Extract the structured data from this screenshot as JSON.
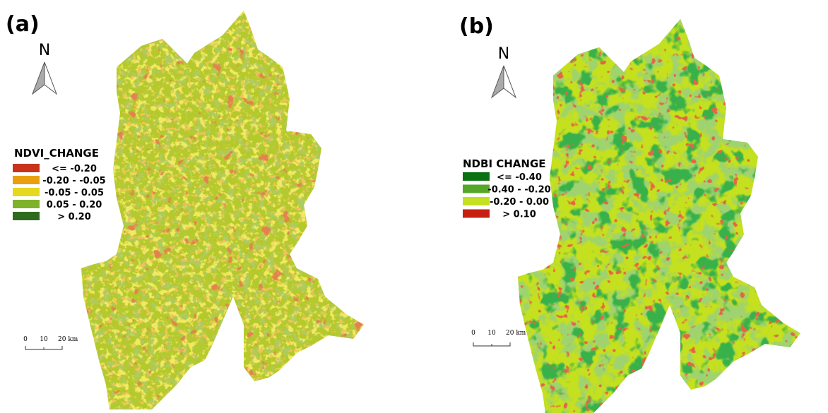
{
  "panels": [
    {
      "label": "(a)",
      "north": "N",
      "legend": {
        "title": "NDVI_CHANGE",
        "items": [
          {
            "label": "<= -0.20",
            "color": "#c8331a"
          },
          {
            "label": "-0.20 - -0.05",
            "color": "#e8a010"
          },
          {
            "label": "-0.05 - 0.05",
            "color": "#e6d81e"
          },
          {
            "label": "0.05 - 0.20",
            "color": "#7fb22a"
          },
          {
            "label": "> 0.20",
            "color": "#2f6b1e"
          }
        ]
      },
      "scale": [
        "0",
        "10",
        "20 km"
      ]
    },
    {
      "label": "(b)",
      "north": "N",
      "legend": {
        "title": "NDBI CHANGE",
        "items": [
          {
            "label": "<= -0.40",
            "color": "#0b7012"
          },
          {
            "label": "-0.40 - -0.20",
            "color": "#56a62a"
          },
          {
            "label": "-0.20 - 0.00",
            "color": "#c4e01e"
          },
          {
            "label": "> 0.10",
            "color": "#c82010"
          }
        ]
      },
      "scale": [
        "0",
        "10",
        "20 km"
      ]
    }
  ]
}
